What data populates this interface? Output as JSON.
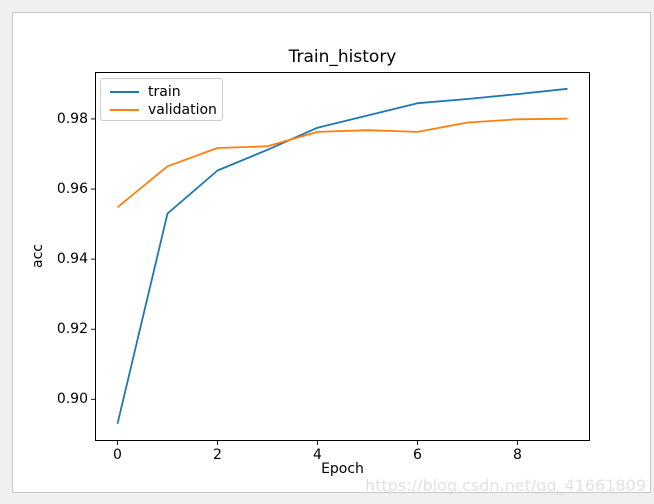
{
  "watermark": "https://blog.csdn.net/qq_41661809",
  "colors": {
    "page_background": "#f0f0f0",
    "figure_background": "#ffffff",
    "figure_border": "#c8c8c8",
    "axes_spine": "#000000",
    "text": "#000000",
    "watermark": "#e2e2e2",
    "train_line": "#1f77b4",
    "validation_line": "#ff7f0e"
  },
  "chart_data": {
    "type": "line",
    "title": "Train_history",
    "xlabel": "Epoch",
    "ylabel": "acc",
    "x": [
      0,
      1,
      2,
      3,
      4,
      5,
      6,
      7,
      8,
      9
    ],
    "series": [
      {
        "name": "train",
        "color": "#1f77b4",
        "values": [
          0.893,
          0.953,
          0.9653,
          0.9712,
          0.9775,
          0.981,
          0.9845,
          0.9857,
          0.9871,
          0.9886
        ]
      },
      {
        "name": "validation",
        "color": "#ff7f0e",
        "values": [
          0.9548,
          0.9665,
          0.9717,
          0.9722,
          0.9763,
          0.9768,
          0.9763,
          0.979,
          0.9799,
          0.9801
        ]
      }
    ],
    "xlim": [
      -0.45,
      9.45
    ],
    "ylim": [
      0.8881,
      0.9934
    ],
    "x_ticks": [
      0,
      2,
      4,
      6,
      8
    ],
    "x_tick_labels": [
      "0",
      "2",
      "4",
      "6",
      "8"
    ],
    "y_ticks": [
      0.9,
      0.92,
      0.94,
      0.96,
      0.98
    ],
    "y_tick_labels": [
      "0.90",
      "0.92",
      "0.94",
      "0.96",
      "0.98"
    ],
    "grid": false,
    "legend_position": "upper left"
  }
}
